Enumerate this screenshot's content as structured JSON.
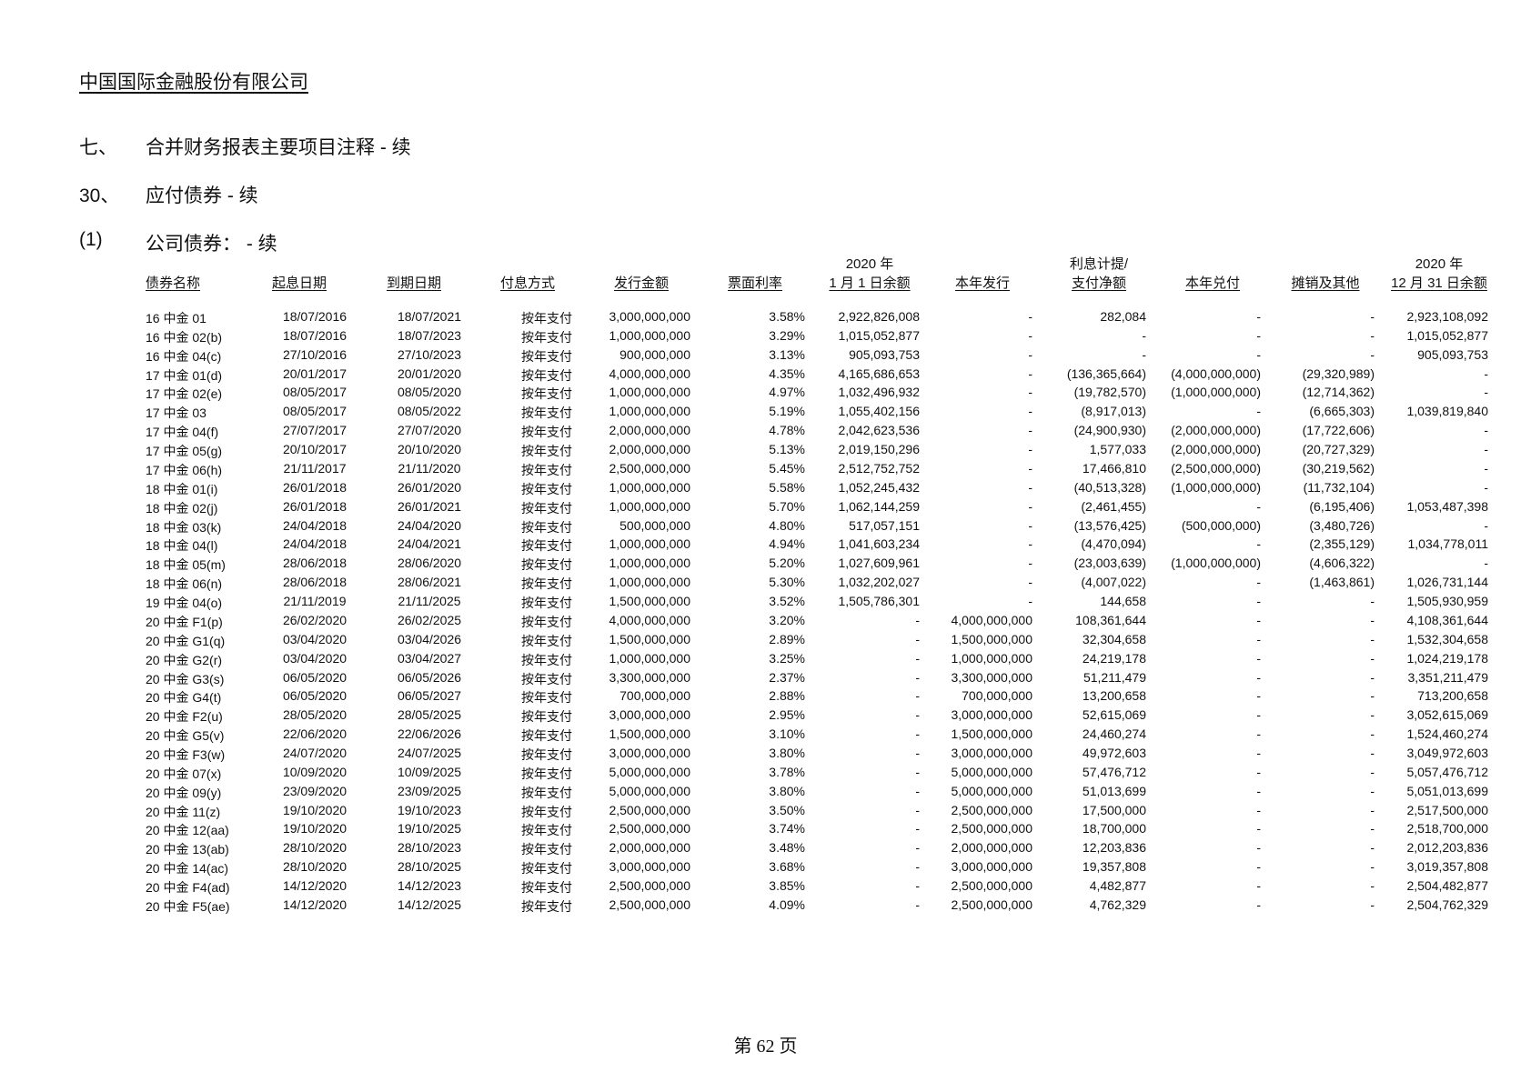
{
  "company": "中国国际金融股份有限公司",
  "sections": [
    {
      "num": "七、",
      "title": "合并财务报表主要项目注释 - 续"
    },
    {
      "num": "30、",
      "title": "应付债券 - 续"
    },
    {
      "num": "(1)",
      "title": "公司债券： - 续"
    }
  ],
  "table": {
    "headers": [
      {
        "top": "",
        "label": "债券名称"
      },
      {
        "top": "",
        "label": "起息日期"
      },
      {
        "top": "",
        "label": "到期日期"
      },
      {
        "top": "",
        "label": "付息方式"
      },
      {
        "top": "",
        "label": "发行金额"
      },
      {
        "top": "",
        "label": "票面利率"
      },
      {
        "top": "2020 年",
        "label": "1 月 1 日余额"
      },
      {
        "top": "",
        "label": "本年发行"
      },
      {
        "top": "利息计提/",
        "label": "支付净额"
      },
      {
        "top": "",
        "label": "本年兑付"
      },
      {
        "top": "",
        "label": "摊销及其他"
      },
      {
        "top": "2020 年",
        "label": "12 月 31 日余额"
      }
    ],
    "rows": [
      [
        "16 中金 01",
        "18/07/2016",
        "18/07/2021",
        "按年支付",
        "3,000,000,000",
        "3.58%",
        "2,922,826,008",
        "-",
        "282,084",
        "-",
        "-",
        "2,923,108,092"
      ],
      [
        "16 中金 02(b)",
        "18/07/2016",
        "18/07/2023",
        "按年支付",
        "1,000,000,000",
        "3.29%",
        "1,015,052,877",
        "-",
        "-",
        "-",
        "-",
        "1,015,052,877"
      ],
      [
        "16 中金 04(c)",
        "27/10/2016",
        "27/10/2023",
        "按年支付",
        "900,000,000",
        "3.13%",
        "905,093,753",
        "-",
        "-",
        "-",
        "-",
        "905,093,753"
      ],
      [
        "17 中金 01(d)",
        "20/01/2017",
        "20/01/2020",
        "按年支付",
        "4,000,000,000",
        "4.35%",
        "4,165,686,653",
        "-",
        "(136,365,664)",
        "(4,000,000,000)",
        "(29,320,989)",
        "-"
      ],
      [
        "17 中金 02(e)",
        "08/05/2017",
        "08/05/2020",
        "按年支付",
        "1,000,000,000",
        "4.97%",
        "1,032,496,932",
        "-",
        "(19,782,570)",
        "(1,000,000,000)",
        "(12,714,362)",
        "-"
      ],
      [
        "17 中金 03",
        "08/05/2017",
        "08/05/2022",
        "按年支付",
        "1,000,000,000",
        "5.19%",
        "1,055,402,156",
        "-",
        "(8,917,013)",
        "-",
        "(6,665,303)",
        "1,039,819,840"
      ],
      [
        "17 中金 04(f)",
        "27/07/2017",
        "27/07/2020",
        "按年支付",
        "2,000,000,000",
        "4.78%",
        "2,042,623,536",
        "-",
        "(24,900,930)",
        "(2,000,000,000)",
        "(17,722,606)",
        "-"
      ],
      [
        "17 中金 05(g)",
        "20/10/2017",
        "20/10/2020",
        "按年支付",
        "2,000,000,000",
        "5.13%",
        "2,019,150,296",
        "-",
        "1,577,033",
        "(2,000,000,000)",
        "(20,727,329)",
        "-"
      ],
      [
        "17 中金 06(h)",
        "21/11/2017",
        "21/11/2020",
        "按年支付",
        "2,500,000,000",
        "5.45%",
        "2,512,752,752",
        "-",
        "17,466,810",
        "(2,500,000,000)",
        "(30,219,562)",
        "-"
      ],
      [
        "18 中金 01(i)",
        "26/01/2018",
        "26/01/2020",
        "按年支付",
        "1,000,000,000",
        "5.58%",
        "1,052,245,432",
        "-",
        "(40,513,328)",
        "(1,000,000,000)",
        "(11,732,104)",
        "-"
      ],
      [
        "18 中金 02(j)",
        "26/01/2018",
        "26/01/2021",
        "按年支付",
        "1,000,000,000",
        "5.70%",
        "1,062,144,259",
        "-",
        "(2,461,455)",
        "-",
        "(6,195,406)",
        "1,053,487,398"
      ],
      [
        "18 中金 03(k)",
        "24/04/2018",
        "24/04/2020",
        "按年支付",
        "500,000,000",
        "4.80%",
        "517,057,151",
        "-",
        "(13,576,425)",
        "(500,000,000)",
        "(3,480,726)",
        "-"
      ],
      [
        "18 中金 04(l)",
        "24/04/2018",
        "24/04/2021",
        "按年支付",
        "1,000,000,000",
        "4.94%",
        "1,041,603,234",
        "-",
        "(4,470,094)",
        "-",
        "(2,355,129)",
        "1,034,778,011"
      ],
      [
        "18 中金 05(m)",
        "28/06/2018",
        "28/06/2020",
        "按年支付",
        "1,000,000,000",
        "5.20%",
        "1,027,609,961",
        "-",
        "(23,003,639)",
        "(1,000,000,000)",
        "(4,606,322)",
        "-"
      ],
      [
        "18 中金 06(n)",
        "28/06/2018",
        "28/06/2021",
        "按年支付",
        "1,000,000,000",
        "5.30%",
        "1,032,202,027",
        "-",
        "(4,007,022)",
        "-",
        "(1,463,861)",
        "1,026,731,144"
      ],
      [
        "19 中金 04(o)",
        "21/11/2019",
        "21/11/2025",
        "按年支付",
        "1,500,000,000",
        "3.52%",
        "1,505,786,301",
        "-",
        "144,658",
        "-",
        "-",
        "1,505,930,959"
      ],
      [
        "20 中金 F1(p)",
        "26/02/2020",
        "26/02/2025",
        "按年支付",
        "4,000,000,000",
        "3.20%",
        "-",
        "4,000,000,000",
        "108,361,644",
        "-",
        "-",
        "4,108,361,644"
      ],
      [
        "20 中金 G1(q)",
        "03/04/2020",
        "03/04/2026",
        "按年支付",
        "1,500,000,000",
        "2.89%",
        "-",
        "1,500,000,000",
        "32,304,658",
        "-",
        "-",
        "1,532,304,658"
      ],
      [
        "20 中金 G2(r)",
        "03/04/2020",
        "03/04/2027",
        "按年支付",
        "1,000,000,000",
        "3.25%",
        "-",
        "1,000,000,000",
        "24,219,178",
        "-",
        "-",
        "1,024,219,178"
      ],
      [
        "20 中金 G3(s)",
        "06/05/2020",
        "06/05/2026",
        "按年支付",
        "3,300,000,000",
        "2.37%",
        "-",
        "3,300,000,000",
        "51,211,479",
        "-",
        "-",
        "3,351,211,479"
      ],
      [
        "20 中金 G4(t)",
        "06/05/2020",
        "06/05/2027",
        "按年支付",
        "700,000,000",
        "2.88%",
        "-",
        "700,000,000",
        "13,200,658",
        "-",
        "-",
        "713,200,658"
      ],
      [
        "20 中金 F2(u)",
        "28/05/2020",
        "28/05/2025",
        "按年支付",
        "3,000,000,000",
        "2.95%",
        "-",
        "3,000,000,000",
        "52,615,069",
        "-",
        "-",
        "3,052,615,069"
      ],
      [
        "20 中金 G5(v)",
        "22/06/2020",
        "22/06/2026",
        "按年支付",
        "1,500,000,000",
        "3.10%",
        "-",
        "1,500,000,000",
        "24,460,274",
        "-",
        "-",
        "1,524,460,274"
      ],
      [
        "20 中金 F3(w)",
        "24/07/2020",
        "24/07/2025",
        "按年支付",
        "3,000,000,000",
        "3.80%",
        "-",
        "3,000,000,000",
        "49,972,603",
        "-",
        "-",
        "3,049,972,603"
      ],
      [
        "20 中金 07(x)",
        "10/09/2020",
        "10/09/2025",
        "按年支付",
        "5,000,000,000",
        "3.78%",
        "-",
        "5,000,000,000",
        "57,476,712",
        "-",
        "-",
        "5,057,476,712"
      ],
      [
        "20 中金 09(y)",
        "23/09/2020",
        "23/09/2025",
        "按年支付",
        "5,000,000,000",
        "3.80%",
        "-",
        "5,000,000,000",
        "51,013,699",
        "-",
        "-",
        "5,051,013,699"
      ],
      [
        "20 中金 11(z)",
        "19/10/2020",
        "19/10/2023",
        "按年支付",
        "2,500,000,000",
        "3.50%",
        "-",
        "2,500,000,000",
        "17,500,000",
        "-",
        "-",
        "2,517,500,000"
      ],
      [
        "20 中金 12(aa)",
        "19/10/2020",
        "19/10/2025",
        "按年支付",
        "2,500,000,000",
        "3.74%",
        "-",
        "2,500,000,000",
        "18,700,000",
        "-",
        "-",
        "2,518,700,000"
      ],
      [
        "20 中金 13(ab)",
        "28/10/2020",
        "28/10/2023",
        "按年支付",
        "2,000,000,000",
        "3.48%",
        "-",
        "2,000,000,000",
        "12,203,836",
        "-",
        "-",
        "2,012,203,836"
      ],
      [
        "20 中金 14(ac)",
        "28/10/2020",
        "28/10/2025",
        "按年支付",
        "3,000,000,000",
        "3.68%",
        "-",
        "3,000,000,000",
        "19,357,808",
        "-",
        "-",
        "3,019,357,808"
      ],
      [
        "20 中金 F4(ad)",
        "14/12/2020",
        "14/12/2023",
        "按年支付",
        "2,500,000,000",
        "3.85%",
        "-",
        "2,500,000,000",
        "4,482,877",
        "-",
        "-",
        "2,504,482,877"
      ],
      [
        "20 中金 F5(ae)",
        "14/12/2020",
        "14/12/2025",
        "按年支付",
        "2,500,000,000",
        "4.09%",
        "-",
        "2,500,000,000",
        "4,762,329",
        "-",
        "-",
        "2,504,762,329"
      ]
    ]
  },
  "footer": "第 62 页"
}
